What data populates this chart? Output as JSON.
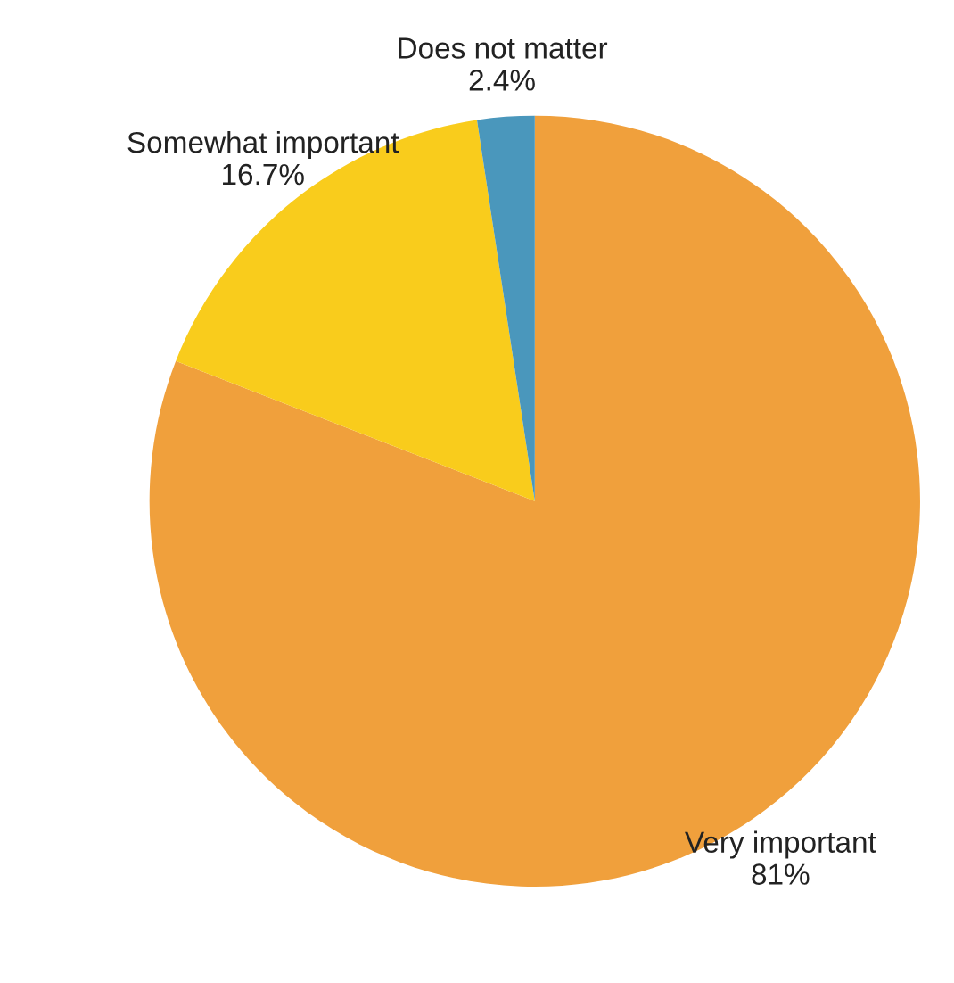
{
  "chart_data": {
    "type": "pie",
    "categories": [
      "Very important",
      "Somewhat important",
      "Does not matter"
    ],
    "values": [
      81,
      16.7,
      2.4
    ],
    "value_labels": [
      "81%",
      "16.7%",
      "2.4%"
    ],
    "colors": [
      "#f0a03c",
      "#f9cc1c",
      "#4a97bc"
    ]
  }
}
